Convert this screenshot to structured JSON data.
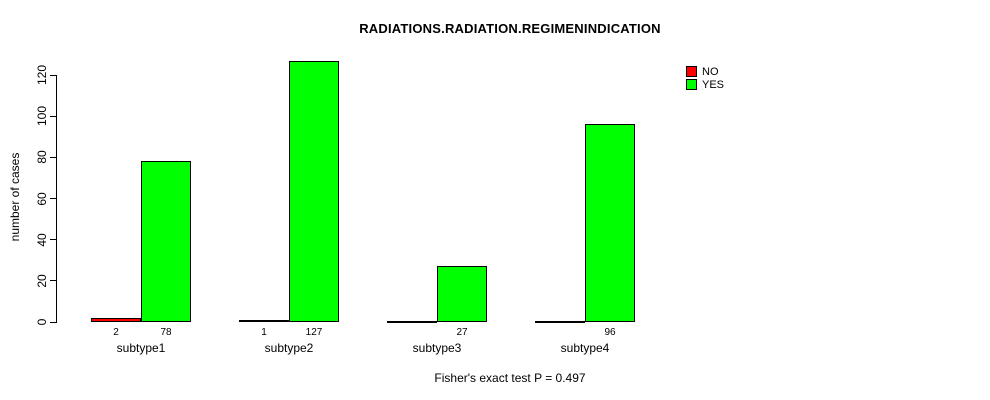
{
  "chart_data": {
    "type": "bar",
    "title": "RADIATIONS.RADIATION.REGIMENINDICATION",
    "ylabel": "number of cases",
    "xlabel": "",
    "categories": [
      "subtype1",
      "subtype2",
      "subtype3",
      "subtype4"
    ],
    "series": [
      {
        "name": "NO",
        "color": "#ff0000",
        "values": [
          2,
          1,
          0,
          0
        ],
        "labels": [
          "2",
          "1",
          "",
          ""
        ]
      },
      {
        "name": "YES",
        "color": "#00ff00",
        "values": [
          78,
          127,
          27,
          96
        ],
        "labels": [
          "78",
          "127",
          "27",
          "96"
        ]
      }
    ],
    "ylim": [
      0,
      127
    ],
    "yticks": [
      0,
      20,
      40,
      60,
      80,
      100,
      120
    ],
    "grid": false,
    "legend_position": "top-right",
    "bar_border_color": "#000000",
    "footnote": "Fisher's exact test P = 0.497"
  }
}
